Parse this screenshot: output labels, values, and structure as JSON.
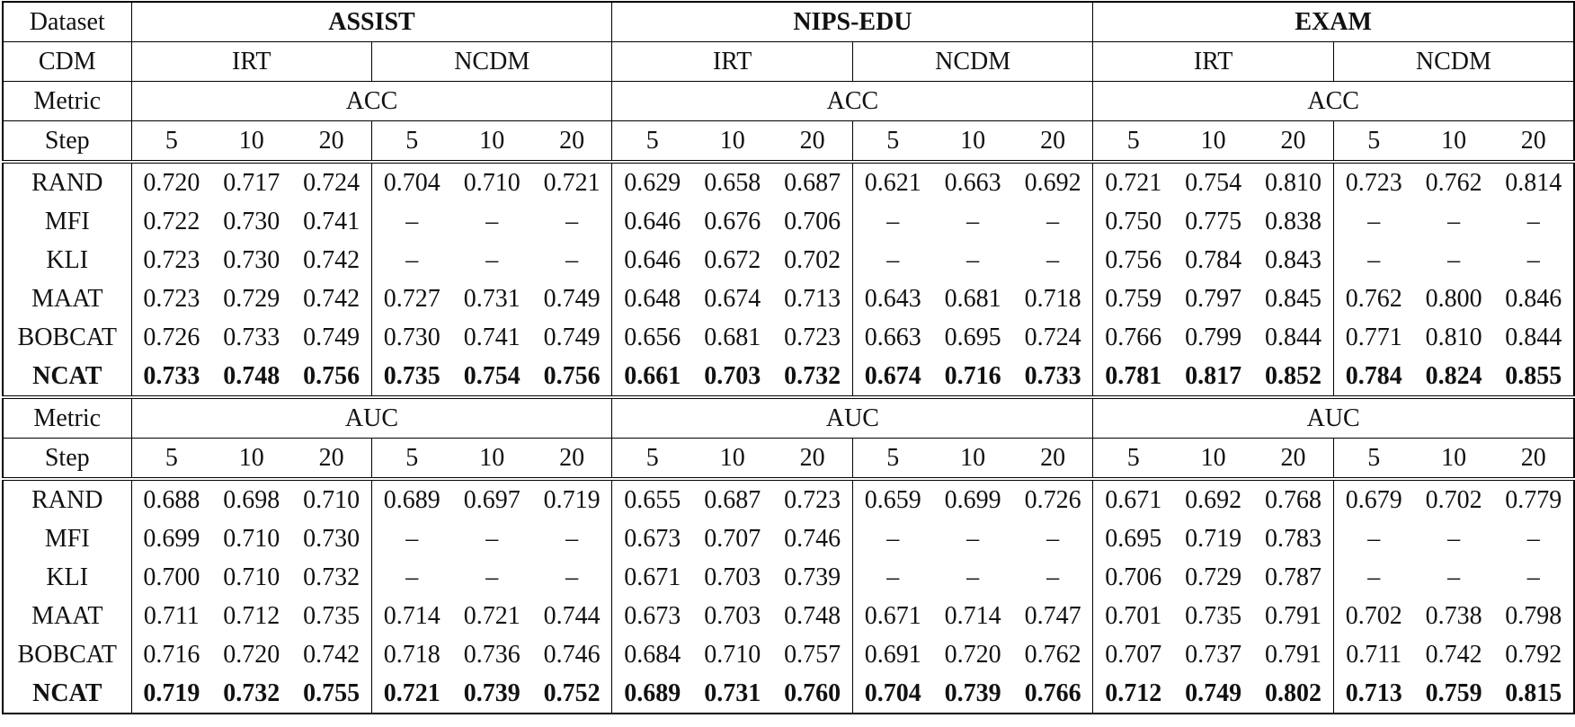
{
  "table": {
    "header": {
      "dataset_label": "Dataset",
      "datasets": [
        "ASSIST",
        "NIPS-EDU",
        "EXAM"
      ],
      "cdm_label": "CDM",
      "cdms": [
        "IRT",
        "NCDM",
        "IRT",
        "NCDM",
        "IRT",
        "NCDM"
      ]
    },
    "sections": [
      {
        "metric_label": "Metric",
        "metrics": [
          "ACC",
          "ACC",
          "ACC"
        ],
        "step_label": "Step",
        "steps": [
          5,
          10,
          20,
          5,
          10,
          20,
          5,
          10,
          20,
          5,
          10,
          20,
          5,
          10,
          20,
          5,
          10,
          20
        ],
        "rows": [
          {
            "method": "RAND",
            "bold": false,
            "values": [
              "0.720",
              "0.717",
              "0.724",
              "0.704",
              "0.710",
              "0.721",
              "0.629",
              "0.658",
              "0.687",
              "0.621",
              "0.663",
              "0.692",
              "0.721",
              "0.754",
              "0.810",
              "0.723",
              "0.762",
              "0.814"
            ]
          },
          {
            "method": "MFI",
            "bold": false,
            "values": [
              "0.722",
              "0.730",
              "0.741",
              "–",
              "–",
              "–",
              "0.646",
              "0.676",
              "0.706",
              "–",
              "–",
              "–",
              "0.750",
              "0.775",
              "0.838",
              "–",
              "–",
              "–"
            ]
          },
          {
            "method": "KLI",
            "bold": false,
            "values": [
              "0.723",
              "0.730",
              "0.742",
              "–",
              "–",
              "–",
              "0.646",
              "0.672",
              "0.702",
              "–",
              "–",
              "–",
              "0.756",
              "0.784",
              "0.843",
              "–",
              "–",
              "–"
            ]
          },
          {
            "method": "MAAT",
            "bold": false,
            "values": [
              "0.723",
              "0.729",
              "0.742",
              "0.727",
              "0.731",
              "0.749",
              "0.648",
              "0.674",
              "0.713",
              "0.643",
              "0.681",
              "0.718",
              "0.759",
              "0.797",
              "0.845",
              "0.762",
              "0.800",
              "0.846"
            ]
          },
          {
            "method": "BOBCAT",
            "bold": false,
            "values": [
              "0.726",
              "0.733",
              "0.749",
              "0.730",
              "0.741",
              "0.749",
              "0.656",
              "0.681",
              "0.723",
              "0.663",
              "0.695",
              "0.724",
              "0.766",
              "0.799",
              "0.844",
              "0.771",
              "0.810",
              "0.844"
            ]
          },
          {
            "method": "NCAT",
            "bold": true,
            "values": [
              "0.733",
              "0.748",
              "0.756",
              "0.735",
              "0.754",
              "0.756",
              "0.661",
              "0.703",
              "0.732",
              "0.674",
              "0.716",
              "0.733",
              "0.781",
              "0.817",
              "0.852",
              "0.784",
              "0.824",
              "0.855"
            ]
          }
        ]
      },
      {
        "metric_label": "Metric",
        "metrics": [
          "AUC",
          "AUC",
          "AUC"
        ],
        "step_label": "Step",
        "steps": [
          5,
          10,
          20,
          5,
          10,
          20,
          5,
          10,
          20,
          5,
          10,
          20,
          5,
          10,
          20,
          5,
          10,
          20
        ],
        "rows": [
          {
            "method": "RAND",
            "bold": false,
            "values": [
              "0.688",
              "0.698",
              "0.710",
              "0.689",
              "0.697",
              "0.719",
              "0.655",
              "0.687",
              "0.723",
              "0.659",
              "0.699",
              "0.726",
              "0.671",
              "0.692",
              "0.768",
              "0.679",
              "0.702",
              "0.779"
            ]
          },
          {
            "method": "MFI",
            "bold": false,
            "values": [
              "0.699",
              "0.710",
              "0.730",
              "–",
              "–",
              "–",
              "0.673",
              "0.707",
              "0.746",
              "–",
              "–",
              "–",
              "0.695",
              "0.719",
              "0.783",
              "–",
              "–",
              "–"
            ]
          },
          {
            "method": "KLI",
            "bold": false,
            "values": [
              "0.700",
              "0.710",
              "0.732",
              "–",
              "–",
              "–",
              "0.671",
              "0.703",
              "0.739",
              "–",
              "–",
              "–",
              "0.706",
              "0.729",
              "0.787",
              "–",
              "–",
              "–"
            ]
          },
          {
            "method": "MAAT",
            "bold": false,
            "values": [
              "0.711",
              "0.712",
              "0.735",
              "0.714",
              "0.721",
              "0.744",
              "0.673",
              "0.703",
              "0.748",
              "0.671",
              "0.714",
              "0.747",
              "0.701",
              "0.735",
              "0.791",
              "0.702",
              "0.738",
              "0.798"
            ]
          },
          {
            "method": "BOBCAT",
            "bold": false,
            "values": [
              "0.716",
              "0.720",
              "0.742",
              "0.718",
              "0.736",
              "0.746",
              "0.684",
              "0.710",
              "0.757",
              "0.691",
              "0.720",
              "0.762",
              "0.707",
              "0.737",
              "0.791",
              "0.711",
              "0.742",
              "0.792"
            ]
          },
          {
            "method": "NCAT",
            "bold": true,
            "values": [
              "0.719",
              "0.732",
              "0.755",
              "0.721",
              "0.739",
              "0.752",
              "0.689",
              "0.731",
              "0.760",
              "0.704",
              "0.739",
              "0.766",
              "0.712",
              "0.749",
              "0.802",
              "0.713",
              "0.759",
              "0.815"
            ]
          }
        ]
      }
    ]
  }
}
